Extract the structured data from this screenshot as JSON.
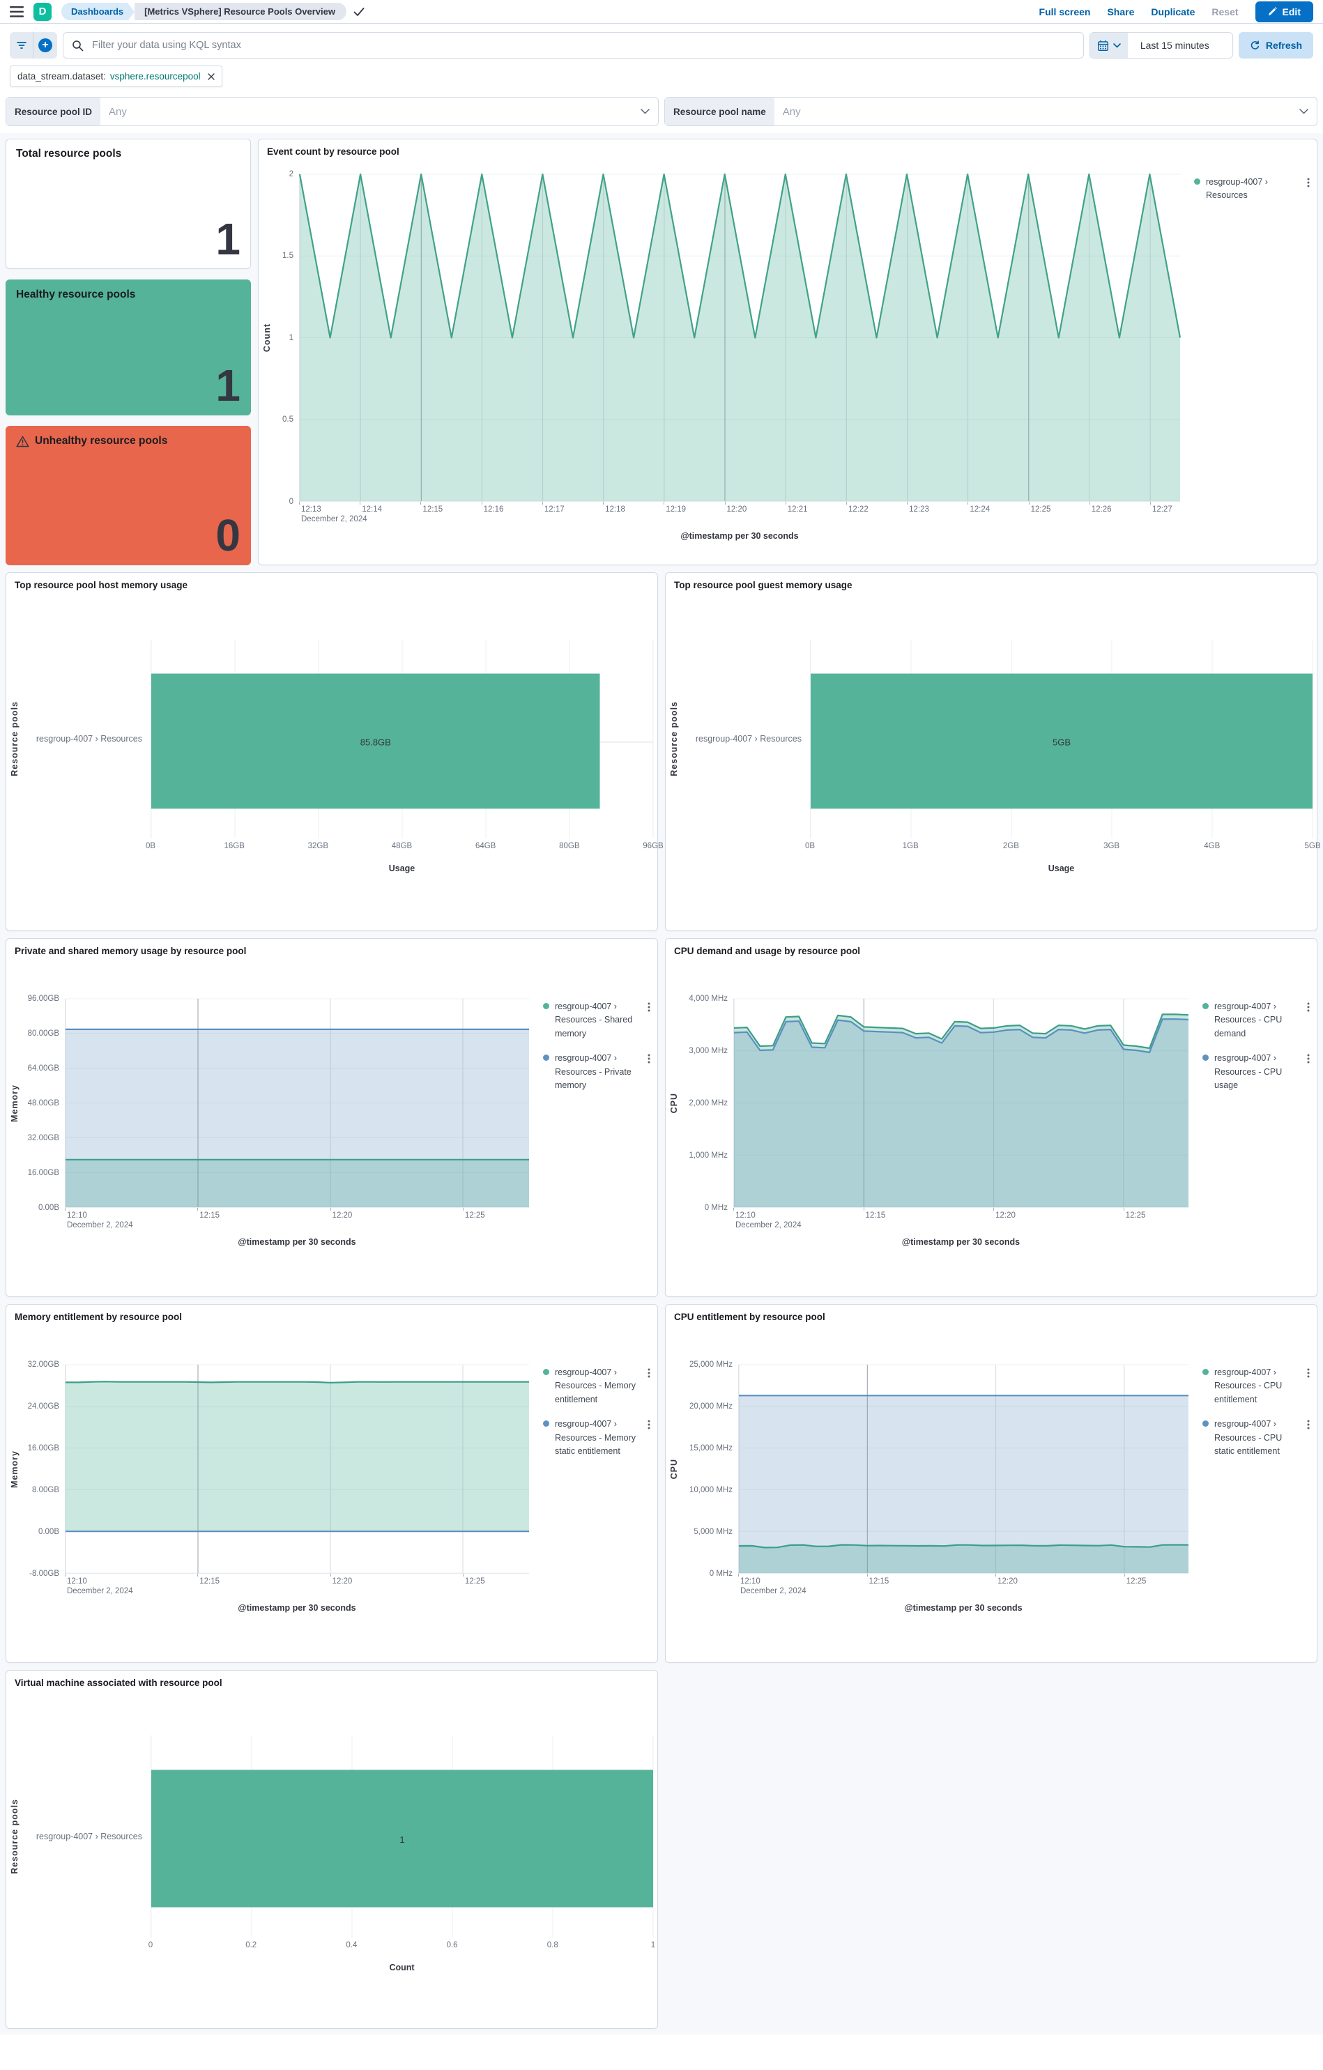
{
  "header": {
    "logo": "D",
    "breadcrumbs": {
      "dashboards": "Dashboards",
      "title": "[Metrics VSphere] Resource Pools Overview"
    },
    "actions": {
      "full_screen": "Full screen",
      "share": "Share",
      "duplicate": "Duplicate",
      "reset": "Reset",
      "edit": "Edit"
    }
  },
  "query": {
    "placeholder": "Filter your data using KQL syntax",
    "time_range": "Last 15 minutes",
    "refresh": "Refresh"
  },
  "filter_chip": {
    "field": "data_stream.dataset:",
    "value": "vsphere.resourcepool"
  },
  "controls": [
    {
      "label": "Resource pool ID",
      "value": "Any"
    },
    {
      "label": "Resource pool name",
      "value": "Any"
    }
  ],
  "metrics": [
    {
      "title": "Total resource pools",
      "value": "1"
    },
    {
      "title": "Healthy resource pools",
      "value": "1"
    },
    {
      "title": "Unhealthy resource pools",
      "value": "0"
    }
  ],
  "colors": {
    "success": "#54B399",
    "danger": "#E7664C",
    "series_green": "#54B399",
    "series_blue": "#6092C0",
    "primary": "#0061A6"
  },
  "chart_data": [
    {
      "id": "event-count",
      "type": "area",
      "title": "Event count by resource pool",
      "ylabel": "Count",
      "xlabel": "@timestamp per 30 seconds",
      "x_date_label": "December 2, 2024",
      "ylim": [
        0,
        2
      ],
      "y_ticks": [
        {
          "v": 0,
          "label": "0"
        },
        {
          "v": 0.5,
          "label": "0.5"
        },
        {
          "v": 1,
          "label": "1"
        },
        {
          "v": 1.5,
          "label": "1.5"
        },
        {
          "v": 2,
          "label": "2"
        }
      ],
      "x_ticks": [
        {
          "f": 0.0,
          "label": "12:13"
        },
        {
          "f": 0.069,
          "label": "12:14"
        },
        {
          "f": 0.138,
          "label": "12:15",
          "dark": true
        },
        {
          "f": 0.207,
          "label": "12:16"
        },
        {
          "f": 0.276,
          "label": "12:17"
        },
        {
          "f": 0.345,
          "label": "12:18"
        },
        {
          "f": 0.414,
          "label": "12:19"
        },
        {
          "f": 0.483,
          "label": "12:20",
          "dark": true
        },
        {
          "f": 0.552,
          "label": "12:21"
        },
        {
          "f": 0.621,
          "label": "12:22"
        },
        {
          "f": 0.69,
          "label": "12:23"
        },
        {
          "f": 0.759,
          "label": "12:24"
        },
        {
          "f": 0.828,
          "label": "12:25",
          "dark": true
        },
        {
          "f": 0.897,
          "label": "12:26"
        },
        {
          "f": 0.966,
          "label": "12:27"
        }
      ],
      "series": [
        {
          "name": "resgroup-4007 › Resources",
          "color": "#54B399",
          "line": "#41A287",
          "fill_opacity": 0.3,
          "values": [
            2,
            1,
            2,
            1,
            2,
            1,
            2,
            1,
            2,
            1,
            2,
            1,
            2,
            1,
            2,
            1,
            2,
            1,
            2,
            1,
            2,
            1,
            2,
            1,
            2,
            1,
            2,
            1,
            2,
            1
          ]
        }
      ]
    },
    {
      "id": "host-memory",
      "type": "hbar",
      "title": "Top resource pool host memory usage",
      "ylabel": "Resource pools",
      "xlabel": "Usage",
      "category": "resgroup-4007 › Resources",
      "value": 85.8,
      "value_label": "85.8GB",
      "xmax": 96,
      "x_ticks": [
        {
          "v": 0,
          "label": "0B"
        },
        {
          "v": 16,
          "label": "16GB"
        },
        {
          "v": 32,
          "label": "32GB"
        },
        {
          "v": 48,
          "label": "48GB"
        },
        {
          "v": 64,
          "label": "64GB"
        },
        {
          "v": 80,
          "label": "80GB"
        },
        {
          "v": 96,
          "label": "96GB"
        }
      ],
      "bar_color": "#54B399"
    },
    {
      "id": "guest-memory",
      "type": "hbar",
      "title": "Top resource pool guest memory usage",
      "ylabel": "Resource pools",
      "xlabel": "Usage",
      "category": "resgroup-4007 › Resources",
      "value": 5,
      "value_label": "5GB",
      "xmax": 5,
      "x_ticks": [
        {
          "v": 0,
          "label": "0B"
        },
        {
          "v": 1,
          "label": "1GB"
        },
        {
          "v": 2,
          "label": "2GB"
        },
        {
          "v": 3,
          "label": "3GB"
        },
        {
          "v": 4,
          "label": "4GB"
        },
        {
          "v": 5,
          "label": "5GB"
        }
      ],
      "bar_color": "#54B399"
    },
    {
      "id": "private-shared-memory",
      "type": "area",
      "title": "Private and shared memory usage by resource pool",
      "ylabel": "Memory",
      "xlabel": "@timestamp per 30 seconds",
      "x_date_label": "December 2, 2024",
      "ylim": [
        0,
        96
      ],
      "y_ticks": [
        {
          "v": 0,
          "label": "0.00B"
        },
        {
          "v": 16,
          "label": "16.00GB"
        },
        {
          "v": 32,
          "label": "32.00GB"
        },
        {
          "v": 48,
          "label": "48.00GB"
        },
        {
          "v": 64,
          "label": "64.00GB"
        },
        {
          "v": 80,
          "label": "80.00GB"
        },
        {
          "v": 96,
          "label": "96.00GB"
        }
      ],
      "x_ticks": [
        {
          "f": 0,
          "label": "12:10"
        },
        {
          "f": 0.2857,
          "label": "12:15",
          "dark": true
        },
        {
          "f": 0.5714,
          "label": "12:20"
        },
        {
          "f": 0.8571,
          "label": "12:25"
        }
      ],
      "series": [
        {
          "name": "resgroup-4007 › Resources - Shared memory",
          "color": "#54B399",
          "line": "#3C9E87",
          "fill_opacity": 0.33,
          "values": [
            21.9,
            21.9
          ]
        },
        {
          "name": "resgroup-4007 › Resources - Private memory",
          "color": "#6092C0",
          "line": "#5B8FC1",
          "fill_opacity": 0.25,
          "values": [
            81.9,
            81.9
          ]
        }
      ]
    },
    {
      "id": "cpu-demand-usage",
      "type": "area",
      "title": "CPU demand and usage by resource pool",
      "ylabel": "CPU",
      "xlabel": "@timestamp per 30 seconds",
      "x_date_label": "December 2, 2024",
      "ylim": [
        0,
        4000
      ],
      "y_ticks": [
        {
          "v": 0,
          "label": "0 MHz"
        },
        {
          "v": 1000,
          "label": "1,000 MHz"
        },
        {
          "v": 2000,
          "label": "2,000 MHz"
        },
        {
          "v": 3000,
          "label": "3,000 MHz"
        },
        {
          "v": 4000,
          "label": "4,000 MHz"
        }
      ],
      "x_ticks": [
        {
          "f": 0,
          "label": "12:10"
        },
        {
          "f": 0.2857,
          "label": "12:15",
          "dark": true
        },
        {
          "f": 0.5714,
          "label": "12:20"
        },
        {
          "f": 0.8571,
          "label": "12:25"
        }
      ],
      "series": [
        {
          "name": "resgroup-4007 › Resources - CPU demand",
          "color": "#54B399",
          "line": "#3C9E87",
          "fill_opacity": 0.33,
          "values": [
            3440,
            3450,
            3090,
            3100,
            3650,
            3660,
            3150,
            3140,
            3680,
            3650,
            3460,
            3450,
            3440,
            3430,
            3330,
            3340,
            3230,
            3560,
            3550,
            3430,
            3440,
            3480,
            3490,
            3340,
            3330,
            3490,
            3480,
            3420,
            3480,
            3490,
            3110,
            3090,
            3050,
            3700,
            3700,
            3690
          ]
        },
        {
          "name": "resgroup-4007 › Resources - CPU usage",
          "color": "#6092C0",
          "line": "#5B8FC1",
          "fill_opacity": 0.25,
          "values": [
            3350,
            3360,
            3010,
            3020,
            3560,
            3570,
            3070,
            3060,
            3590,
            3560,
            3380,
            3370,
            3360,
            3350,
            3250,
            3260,
            3150,
            3480,
            3470,
            3350,
            3360,
            3400,
            3410,
            3260,
            3250,
            3410,
            3400,
            3340,
            3400,
            3410,
            3030,
            3010,
            2970,
            3610,
            3610,
            3600
          ]
        }
      ]
    },
    {
      "id": "memory-entitlement",
      "type": "area",
      "title": "Memory entitlement by resource pool",
      "ylabel": "Memory",
      "xlabel": "@timestamp per 30 seconds",
      "x_date_label": "December 2, 2024",
      "ylim": [
        -8,
        32
      ],
      "y_ticks": [
        {
          "v": -8,
          "label": "-8.00GB"
        },
        {
          "v": 0,
          "label": "0.00B"
        },
        {
          "v": 8,
          "label": "8.00GB"
        },
        {
          "v": 16,
          "label": "16.00GB"
        },
        {
          "v": 24,
          "label": "24.00GB"
        },
        {
          "v": 32,
          "label": "32.00GB"
        }
      ],
      "x_ticks": [
        {
          "f": 0,
          "label": "12:10"
        },
        {
          "f": 0.2857,
          "label": "12:15",
          "dark": true
        },
        {
          "f": 0.5714,
          "label": "12:20"
        },
        {
          "f": 0.8571,
          "label": "12:25"
        }
      ],
      "series": [
        {
          "name": "resgroup-4007 › Resources - Memory entitlement",
          "color": "#54B399",
          "line": "#3C9E87",
          "fill_opacity": 0.3,
          "values": [
            28.6,
            28.6,
            28.7,
            28.75,
            28.7,
            28.7,
            28.7,
            28.7,
            28.7,
            28.7,
            28.65,
            28.6,
            28.65,
            28.7,
            28.7,
            28.7,
            28.7,
            28.7,
            28.7,
            28.65,
            28.55,
            28.6,
            28.7,
            28.7,
            28.68,
            28.7,
            28.7,
            28.7,
            28.7,
            28.7,
            28.7,
            28.7,
            28.7,
            28.7,
            28.7,
            28.7
          ]
        },
        {
          "name": "resgroup-4007 › Resources - Memory static entitlement",
          "color": "#6092C0",
          "line": "#5B8FC1",
          "fill_opacity": 0.25,
          "values": [
            0,
            0
          ]
        }
      ]
    },
    {
      "id": "cpu-entitlement",
      "type": "area",
      "title": "CPU entitlement by resource pool",
      "ylabel": "CPU",
      "xlabel": "@timestamp per 30 seconds",
      "x_date_label": "December 2, 2024",
      "ylim": [
        0,
        25000
      ],
      "y_ticks": [
        {
          "v": 0,
          "label": "0 MHz"
        },
        {
          "v": 5000,
          "label": "5,000 MHz"
        },
        {
          "v": 10000,
          "label": "10,000 MHz"
        },
        {
          "v": 15000,
          "label": "15,000 MHz"
        },
        {
          "v": 20000,
          "label": "20,000 MHz"
        },
        {
          "v": 25000,
          "label": "25,000 MHz"
        }
      ],
      "x_ticks": [
        {
          "f": 0,
          "label": "12:10"
        },
        {
          "f": 0.2857,
          "label": "12:15",
          "dark": true
        },
        {
          "f": 0.5714,
          "label": "12:20"
        },
        {
          "f": 0.8571,
          "label": "12:25"
        }
      ],
      "series": [
        {
          "name": "resgroup-4007 › Resources - CPU entitlement",
          "color": "#54B399",
          "line": "#3C9E87",
          "fill_opacity": 0.33,
          "values": [
            3260,
            3270,
            3060,
            3080,
            3350,
            3380,
            3200,
            3210,
            3390,
            3370,
            3290,
            3300,
            3290,
            3280,
            3260,
            3270,
            3240,
            3380,
            3370,
            3300,
            3310,
            3330,
            3340,
            3280,
            3270,
            3350,
            3340,
            3300,
            3290,
            3360,
            3160,
            3140,
            3120,
            3380,
            3390,
            3380
          ]
        },
        {
          "name": "resgroup-4007 › Resources - CPU static entitlement",
          "color": "#6092C0",
          "line": "#5B8FC1",
          "fill_opacity": 0.25,
          "values": [
            21300,
            21300
          ]
        }
      ]
    },
    {
      "id": "vm-count",
      "type": "hbar",
      "title": "Virtual machine associated with resource pool",
      "ylabel": "Resource pools",
      "xlabel": "Count",
      "category": "resgroup-4007 › Resources",
      "value": 1,
      "value_label": "1",
      "xmax": 1,
      "x_ticks": [
        {
          "v": 0,
          "label": "0"
        },
        {
          "v": 0.2,
          "label": "0.2"
        },
        {
          "v": 0.4,
          "label": "0.4"
        },
        {
          "v": 0.6,
          "label": "0.6"
        },
        {
          "v": 0.8,
          "label": "0.8"
        },
        {
          "v": 1,
          "label": "1"
        }
      ],
      "bar_color": "#54B399"
    }
  ]
}
